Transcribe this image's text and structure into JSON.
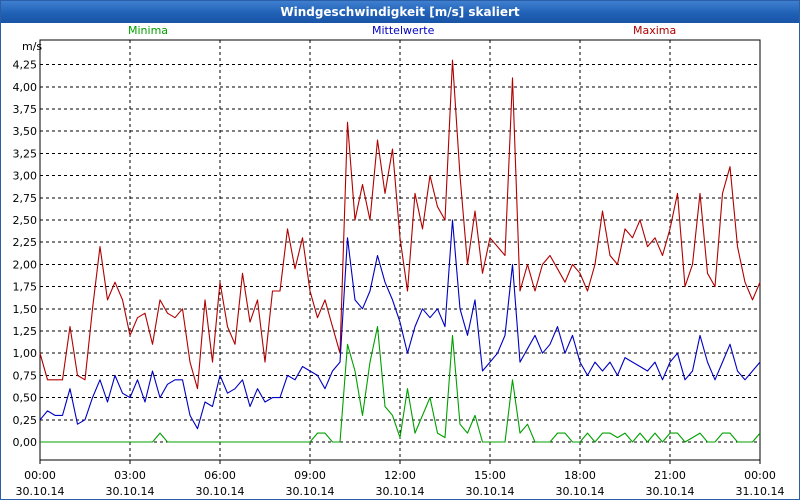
{
  "window": {
    "title": "Windgeschwindigkeit [m/s] skaliert"
  },
  "colors": {
    "minima": "#00a000",
    "mittel": "#0000c0",
    "maxima": "#b00000",
    "title_bar": "#1e5fb4"
  },
  "chart_data": {
    "type": "line",
    "title": "Windgeschwindigkeit [m/s] skaliert",
    "ylabel": "m/s",
    "xlabel": "",
    "ylim": [
      0,
      4.45
    ],
    "xlim": [
      0,
      24
    ],
    "yticks": [
      0,
      0.25,
      0.5,
      0.75,
      1.0,
      1.25,
      1.5,
      1.75,
      2.0,
      2.25,
      2.5,
      2.75,
      3.0,
      3.25,
      3.5,
      3.75,
      4.0,
      4.25
    ],
    "ytick_labels": [
      "0,00",
      "0,25",
      "0,50",
      "0,75",
      "1,00",
      "1,25",
      "1,50",
      "1,75",
      "2,00",
      "2,25",
      "2,50",
      "2,75",
      "3,00",
      "3,25",
      "3,50",
      "3,75",
      "4,00",
      "4,25"
    ],
    "xticks": [
      0,
      3,
      6,
      9,
      12,
      15,
      18,
      21,
      24
    ],
    "xtick_times": [
      "00:00",
      "03:00",
      "06:00",
      "09:00",
      "12:00",
      "15:00",
      "18:00",
      "21:00",
      "00:00"
    ],
    "xtick_dates": [
      "30.10.14",
      "30.10.14",
      "30.10.14",
      "30.10.14",
      "30.10.14",
      "30.10.14",
      "30.10.14",
      "30.10.14",
      "31.10.14"
    ],
    "legend": [
      "Minima",
      "Mittelwerte",
      "Maxima"
    ],
    "grid": true,
    "series": [
      {
        "name": "Maxima",
        "x": [
          0,
          0.25,
          0.5,
          0.75,
          1,
          1.25,
          1.5,
          1.75,
          2,
          2.25,
          2.5,
          2.75,
          3,
          3.25,
          3.5,
          3.75,
          4,
          4.25,
          4.5,
          4.75,
          5,
          5.25,
          5.5,
          5.75,
          6,
          6.25,
          6.5,
          6.75,
          7,
          7.25,
          7.5,
          7.75,
          8,
          8.25,
          8.5,
          8.75,
          9,
          9.25,
          9.5,
          9.75,
          10,
          10.25,
          10.5,
          10.75,
          11,
          11.25,
          11.5,
          11.75,
          12,
          12.25,
          12.5,
          12.75,
          13,
          13.25,
          13.5,
          13.75,
          14,
          14.25,
          14.5,
          14.75,
          15,
          15.25,
          15.5,
          15.75,
          16,
          16.25,
          16.5,
          16.75,
          17,
          17.25,
          17.5,
          17.75,
          18,
          18.25,
          18.5,
          18.75,
          19,
          19.25,
          19.5,
          19.75,
          20,
          20.25,
          20.5,
          20.75,
          21,
          21.25,
          21.5,
          21.75,
          22,
          22.25,
          22.5,
          22.75,
          23,
          23.25,
          23.5,
          23.75,
          24
        ],
        "y": [
          1.0,
          0.7,
          0.7,
          0.7,
          1.3,
          0.75,
          0.7,
          1.5,
          2.2,
          1.6,
          1.8,
          1.6,
          1.2,
          1.4,
          1.45,
          1.1,
          1.6,
          1.45,
          1.4,
          1.5,
          0.9,
          0.6,
          1.6,
          0.9,
          1.8,
          1.3,
          1.1,
          1.9,
          1.35,
          1.6,
          0.9,
          1.7,
          1.7,
          2.4,
          1.95,
          2.3,
          1.7,
          1.4,
          1.6,
          1.3,
          1.0,
          3.6,
          2.5,
          2.9,
          2.5,
          3.4,
          2.8,
          3.3,
          2.3,
          1.7,
          2.8,
          2.4,
          3.0,
          2.65,
          2.5,
          4.3,
          3.0,
          2.0,
          2.6,
          1.9,
          2.3,
          2.2,
          2.1,
          4.1,
          1.7,
          2.0,
          1.7,
          2.0,
          2.1,
          1.95,
          1.8,
          2.0,
          1.9,
          1.7,
          2.0,
          2.6,
          2.1,
          2.0,
          2.4,
          2.3,
          2.5,
          2.2,
          2.3,
          2.1,
          2.4,
          2.8,
          1.75,
          2.0,
          2.8,
          1.9,
          1.75,
          2.8,
          3.1,
          2.2,
          1.8,
          1.6,
          1.8
        ]
      },
      {
        "name": "Mittelwerte",
        "x": [
          0,
          0.25,
          0.5,
          0.75,
          1,
          1.25,
          1.5,
          1.75,
          2,
          2.25,
          2.5,
          2.75,
          3,
          3.25,
          3.5,
          3.75,
          4,
          4.25,
          4.5,
          4.75,
          5,
          5.25,
          5.5,
          5.75,
          6,
          6.25,
          6.5,
          6.75,
          7,
          7.25,
          7.5,
          7.75,
          8,
          8.25,
          8.5,
          8.75,
          9,
          9.25,
          9.5,
          9.75,
          10,
          10.25,
          10.5,
          10.75,
          11,
          11.25,
          11.5,
          11.75,
          12,
          12.25,
          12.5,
          12.75,
          13,
          13.25,
          13.5,
          13.75,
          14,
          14.25,
          14.5,
          14.75,
          15,
          15.25,
          15.5,
          15.75,
          16,
          16.25,
          16.5,
          16.75,
          17,
          17.25,
          17.5,
          17.75,
          18,
          18.25,
          18.5,
          18.75,
          19,
          19.25,
          19.5,
          19.75,
          20,
          20.25,
          20.5,
          20.75,
          21,
          21.25,
          21.5,
          21.75,
          22,
          22.25,
          22.5,
          22.75,
          23,
          23.25,
          23.5,
          23.75,
          24
        ],
        "y": [
          0.25,
          0.35,
          0.3,
          0.3,
          0.6,
          0.2,
          0.25,
          0.5,
          0.7,
          0.45,
          0.75,
          0.55,
          0.5,
          0.7,
          0.45,
          0.8,
          0.5,
          0.65,
          0.7,
          0.7,
          0.3,
          0.15,
          0.45,
          0.4,
          0.75,
          0.55,
          0.6,
          0.7,
          0.4,
          0.6,
          0.45,
          0.5,
          0.5,
          0.75,
          0.7,
          0.85,
          0.8,
          0.75,
          0.6,
          0.8,
          0.9,
          2.3,
          1.6,
          1.5,
          1.7,
          2.1,
          1.8,
          1.6,
          1.35,
          1.0,
          1.3,
          1.5,
          1.4,
          1.5,
          1.3,
          2.5,
          1.5,
          1.2,
          1.6,
          0.8,
          0.9,
          1.0,
          1.2,
          2.0,
          0.9,
          1.05,
          1.2,
          1.0,
          1.1,
          1.3,
          1.0,
          1.2,
          0.9,
          0.75,
          0.9,
          0.8,
          0.9,
          0.75,
          0.95,
          0.9,
          0.85,
          0.8,
          0.9,
          0.7,
          0.9,
          1.0,
          0.7,
          0.8,
          1.2,
          0.9,
          0.7,
          0.9,
          1.1,
          0.8,
          0.7,
          0.8,
          0.9
        ]
      },
      {
        "name": "Minima",
        "x": [
          0,
          0.25,
          0.5,
          0.75,
          1,
          1.25,
          1.5,
          1.75,
          2,
          2.25,
          2.5,
          2.75,
          3,
          3.25,
          3.5,
          3.75,
          4,
          4.25,
          4.5,
          4.75,
          5,
          5.25,
          5.5,
          5.75,
          6,
          6.25,
          6.5,
          6.75,
          7,
          7.25,
          7.5,
          7.75,
          8,
          8.25,
          8.5,
          8.75,
          9,
          9.25,
          9.5,
          9.75,
          10,
          10.25,
          10.5,
          10.75,
          11,
          11.25,
          11.5,
          11.75,
          12,
          12.25,
          12.5,
          12.75,
          13,
          13.25,
          13.5,
          13.75,
          14,
          14.25,
          14.5,
          14.75,
          15,
          15.25,
          15.5,
          15.75,
          16,
          16.25,
          16.5,
          16.75,
          17,
          17.25,
          17.5,
          17.75,
          18,
          18.25,
          18.5,
          18.75,
          19,
          19.25,
          19.5,
          19.75,
          20,
          20.25,
          20.5,
          20.75,
          21,
          21.25,
          21.5,
          21.75,
          22,
          22.25,
          22.5,
          22.75,
          23,
          23.25,
          23.5,
          23.75,
          24
        ],
        "y": [
          0,
          0,
          0,
          0,
          0,
          0,
          0,
          0,
          0,
          0,
          0,
          0,
          0,
          0,
          0,
          0,
          0.1,
          0,
          0,
          0,
          0,
          0,
          0,
          0,
          0,
          0,
          0,
          0,
          0,
          0,
          0,
          0,
          0,
          0,
          0,
          0,
          0,
          0.1,
          0.1,
          0,
          0,
          1.1,
          0.8,
          0.3,
          0.9,
          1.3,
          0.4,
          0.3,
          0.05,
          0.6,
          0.1,
          0.3,
          0.5,
          0.1,
          0.05,
          1.2,
          0.2,
          0.1,
          0.3,
          0,
          0,
          0,
          0,
          0.7,
          0.1,
          0.2,
          0,
          0,
          0,
          0.1,
          0.1,
          0,
          0,
          0.1,
          0,
          0.1,
          0.1,
          0.05,
          0.1,
          0,
          0.1,
          0,
          0.1,
          0,
          0.1,
          0.1,
          0,
          0.05,
          0.1,
          0,
          0,
          0.1,
          0.1,
          0,
          0,
          0,
          0.1
        ]
      }
    ]
  }
}
